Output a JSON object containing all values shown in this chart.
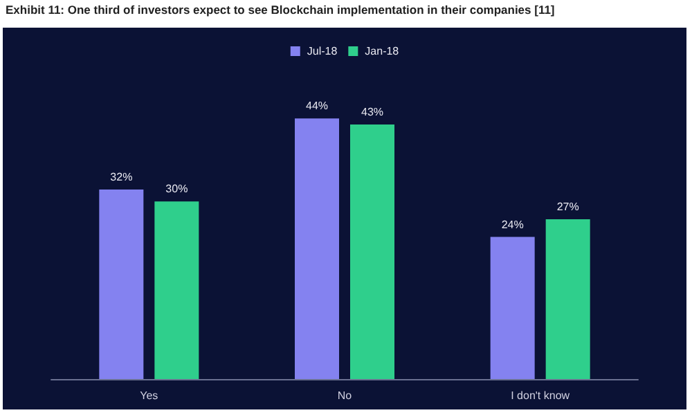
{
  "chart_data": {
    "type": "bar",
    "title": "Exhibit 11: One third of investors expect to see Blockchain implementation in their companies [11]",
    "categories": [
      "Yes",
      "No",
      "I don't know"
    ],
    "series": [
      {
        "name": "Jul-18",
        "color": "#8482f0",
        "values": [
          32,
          44,
          24
        ],
        "value_labels": [
          "32%",
          "44%",
          "24%"
        ]
      },
      {
        "name": "Jan-18",
        "color": "#2fcf8c",
        "values": [
          30,
          43,
          27
        ],
        "value_labels": [
          "30%",
          "43%",
          "27%"
        ]
      }
    ],
    "legend": "top"
  }
}
